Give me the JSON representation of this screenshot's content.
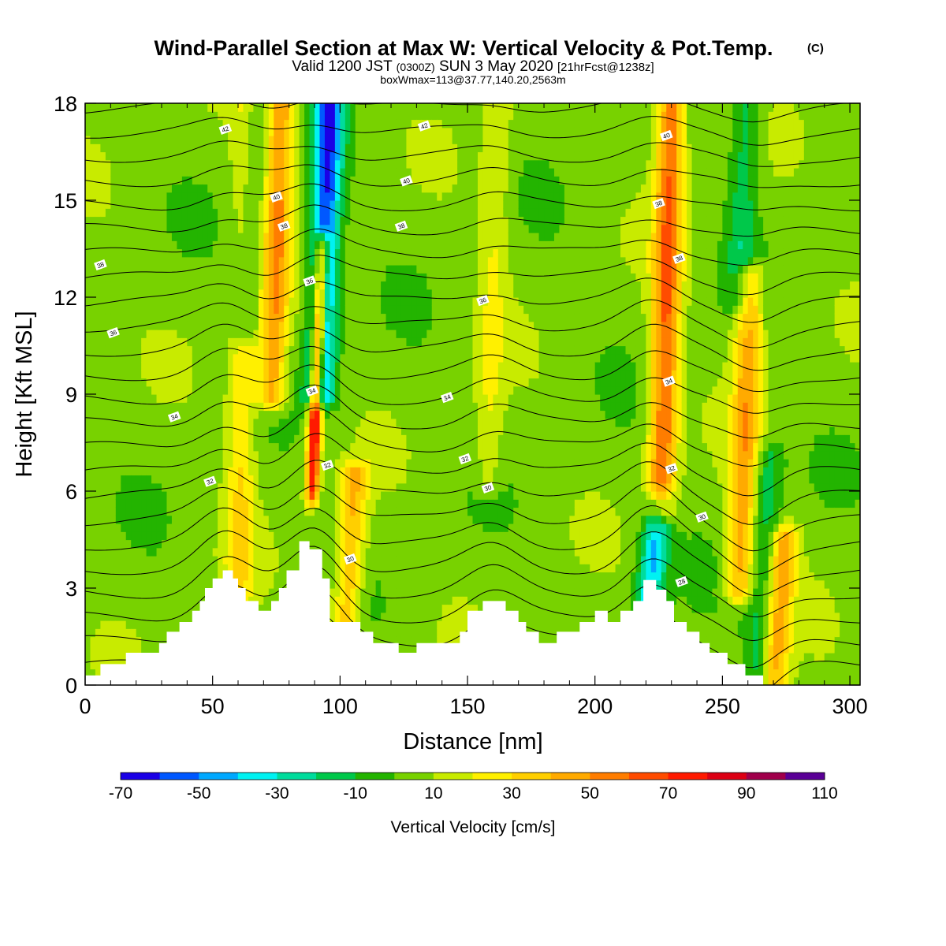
{
  "header": {
    "title_main": "Wind-Parallel Section at Max W: Vertical Velocity & Pot.Temp.",
    "title_mark": "(C)",
    "valid_prefix": "Valid 1200 JST",
    "valid_utc": "(0300Z)",
    "valid_date": "SUN 3 May 2020",
    "valid_fcst": "[21hrFcst@1238z]",
    "box_info": "boxWmax=113@37.77,140.20,2563m"
  },
  "chart_data": {
    "type": "heatmap",
    "title": "Wind-Parallel Section at Max W: Vertical Velocity & Pot.Temp.",
    "xlabel": "Distance [nm]",
    "ylabel": "Height [Kft MSL]",
    "xlim": [
      0,
      304
    ],
    "ylim": [
      0,
      18
    ],
    "xticks": [
      0,
      50,
      100,
      150,
      200,
      250,
      300
    ],
    "yticks": [
      0,
      3,
      6,
      9,
      12,
      15,
      18
    ],
    "colorbar": {
      "label": "Vertical Velocity [cm/s]",
      "bounds": [
        -70,
        -60,
        -50,
        -40,
        -30,
        -20,
        -10,
        0,
        10,
        20,
        30,
        40,
        50,
        60,
        70,
        80,
        90,
        100,
        110
      ],
      "tick_labels": [
        "-70",
        "-50",
        "-30",
        "-10",
        "10",
        "30",
        "50",
        "70",
        "90",
        "110"
      ],
      "colors": [
        "#1a00e6",
        "#0058ff",
        "#00a8ff",
        "#00f2f2",
        "#00dc9c",
        "#00c84a",
        "#23b400",
        "#78d200",
        "#c8eb00",
        "#fff000",
        "#ffcf00",
        "#ffaa00",
        "#ff7d00",
        "#ff4c00",
        "#ff1a00",
        "#dc0014",
        "#a0004b",
        "#5a0096"
      ]
    },
    "w_features": [
      {
        "x": 62,
        "z_bottom": 2.8,
        "z_top": 18,
        "w": 25
      },
      {
        "x": 75,
        "z_bottom": 9.0,
        "z_top": 18,
        "w": 45
      },
      {
        "x": 91,
        "z_bottom": 6.0,
        "z_top": 13.5,
        "w": 95
      },
      {
        "x": 104,
        "z_bottom": 1.5,
        "z_top": 6.5,
        "w": 35
      },
      {
        "x": 94,
        "z_bottom": 9.0,
        "z_top": 18,
        "w": -65
      },
      {
        "x": 65,
        "z_bottom": 11.0,
        "z_top": 18,
        "w": -25
      },
      {
        "x": 228,
        "z_bottom": 5.5,
        "z_top": 18,
        "w": 55
      },
      {
        "x": 223,
        "z_bottom": 2.5,
        "z_top": 5.5,
        "w": -45
      },
      {
        "x": 259,
        "z_bottom": 3.0,
        "z_top": 12.5,
        "w": 40
      },
      {
        "x": 272,
        "z_bottom": 0.2,
        "z_top": 4.5,
        "w": 40
      },
      {
        "x": 258,
        "z_bottom": 12.0,
        "z_top": 18,
        "w": -20
      },
      {
        "x": 266,
        "z_bottom": 0.3,
        "z_top": 7.0,
        "w": -22
      },
      {
        "x": 160,
        "z_bottom": 6.5,
        "z_top": 18,
        "w": 15
      }
    ],
    "theta_labels": [
      {
        "x": 55,
        "y": 17.2,
        "label": "42"
      },
      {
        "x": 133,
        "y": 17.3,
        "label": "42"
      },
      {
        "x": 228,
        "y": 17.0,
        "label": "40"
      },
      {
        "x": 75,
        "y": 15.1,
        "label": "40"
      },
      {
        "x": 126,
        "y": 15.6,
        "label": "40"
      },
      {
        "x": 78,
        "y": 14.2,
        "label": "38"
      },
      {
        "x": 225,
        "y": 14.9,
        "label": "38"
      },
      {
        "x": 124,
        "y": 14.2,
        "label": "38"
      },
      {
        "x": 6,
        "y": 13.0,
        "label": "38"
      },
      {
        "x": 233,
        "y": 13.2,
        "label": "38"
      },
      {
        "x": 88,
        "y": 12.5,
        "label": "36"
      },
      {
        "x": 156,
        "y": 11.9,
        "label": "36"
      },
      {
        "x": 11,
        "y": 10.9,
        "label": "36"
      },
      {
        "x": 229,
        "y": 9.4,
        "label": "34"
      },
      {
        "x": 89,
        "y": 9.1,
        "label": "34"
      },
      {
        "x": 142,
        "y": 8.9,
        "label": "34"
      },
      {
        "x": 35,
        "y": 8.3,
        "label": "34"
      },
      {
        "x": 95,
        "y": 6.8,
        "label": "32"
      },
      {
        "x": 149,
        "y": 7.0,
        "label": "32"
      },
      {
        "x": 230,
        "y": 6.7,
        "label": "32"
      },
      {
        "x": 49,
        "y": 6.3,
        "label": "32"
      },
      {
        "x": 158,
        "y": 6.1,
        "label": "30"
      },
      {
        "x": 242,
        "y": 5.2,
        "label": "30"
      },
      {
        "x": 104,
        "y": 3.9,
        "label": "30"
      },
      {
        "x": 234,
        "y": 3.2,
        "label": "28"
      }
    ],
    "terrain": [
      [
        0,
        0.3
      ],
      [
        6,
        0.3
      ],
      [
        6,
        0.65
      ],
      [
        16,
        0.65
      ],
      [
        16,
        1.0
      ],
      [
        29,
        1.0
      ],
      [
        29,
        1.3
      ],
      [
        32,
        1.3
      ],
      [
        32,
        1.65
      ],
      [
        37,
        1.65
      ],
      [
        37,
        1.95
      ],
      [
        42,
        1.95
      ],
      [
        42,
        2.3
      ],
      [
        45,
        2.3
      ],
      [
        45,
        2.6
      ],
      [
        47,
        2.6
      ],
      [
        47,
        3.0
      ],
      [
        50,
        3.0
      ],
      [
        50,
        3.3
      ],
      [
        54,
        3.3
      ],
      [
        54,
        3.55
      ],
      [
        58,
        3.55
      ],
      [
        58,
        3.3
      ],
      [
        60,
        3.3
      ],
      [
        60,
        3.0
      ],
      [
        63,
        3.0
      ],
      [
        63,
        2.6
      ],
      [
        68,
        2.6
      ],
      [
        68,
        2.3
      ],
      [
        73,
        2.3
      ],
      [
        73,
        2.6
      ],
      [
        76,
        2.6
      ],
      [
        76,
        3.0
      ],
      [
        79,
        3.0
      ],
      [
        79,
        3.55
      ],
      [
        84,
        3.55
      ],
      [
        84,
        4.45
      ],
      [
        88,
        4.45
      ],
      [
        88,
        4.2
      ],
      [
        93,
        4.2
      ],
      [
        93,
        3.3
      ],
      [
        96,
        3.3
      ],
      [
        96,
        1.95
      ],
      [
        108,
        1.95
      ],
      [
        108,
        1.65
      ],
      [
        113,
        1.65
      ],
      [
        113,
        1.3
      ],
      [
        123,
        1.3
      ],
      [
        123,
        1.0
      ],
      [
        130,
        1.0
      ],
      [
        130,
        1.3
      ],
      [
        147,
        1.3
      ],
      [
        147,
        1.65
      ],
      [
        150,
        1.65
      ],
      [
        150,
        2.3
      ],
      [
        156,
        2.3
      ],
      [
        156,
        2.6
      ],
      [
        165,
        2.6
      ],
      [
        165,
        2.3
      ],
      [
        170,
        2.3
      ],
      [
        170,
        1.95
      ],
      [
        173,
        1.95
      ],
      [
        173,
        1.65
      ],
      [
        178,
        1.65
      ],
      [
        178,
        1.3
      ],
      [
        185,
        1.3
      ],
      [
        185,
        1.65
      ],
      [
        194,
        1.65
      ],
      [
        194,
        1.95
      ],
      [
        200,
        1.95
      ],
      [
        200,
        2.3
      ],
      [
        205,
        2.3
      ],
      [
        205,
        1.95
      ],
      [
        210,
        1.95
      ],
      [
        210,
        2.3
      ],
      [
        215,
        2.3
      ],
      [
        215,
        2.6
      ],
      [
        219,
        2.6
      ],
      [
        219,
        3.25
      ],
      [
        224,
        3.25
      ],
      [
        224,
        2.95
      ],
      [
        228,
        2.95
      ],
      [
        228,
        2.6
      ],
      [
        231,
        2.6
      ],
      [
        231,
        1.95
      ],
      [
        236,
        1.95
      ],
      [
        236,
        1.65
      ],
      [
        241,
        1.65
      ],
      [
        241,
        1.3
      ],
      [
        245,
        1.3
      ],
      [
        245,
        1.0
      ],
      [
        252,
        1.0
      ],
      [
        252,
        0.65
      ],
      [
        259,
        0.65
      ],
      [
        259,
        0.3
      ],
      [
        266,
        0.3
      ],
      [
        266,
        0.0
      ],
      [
        304,
        0.0
      ]
    ]
  }
}
